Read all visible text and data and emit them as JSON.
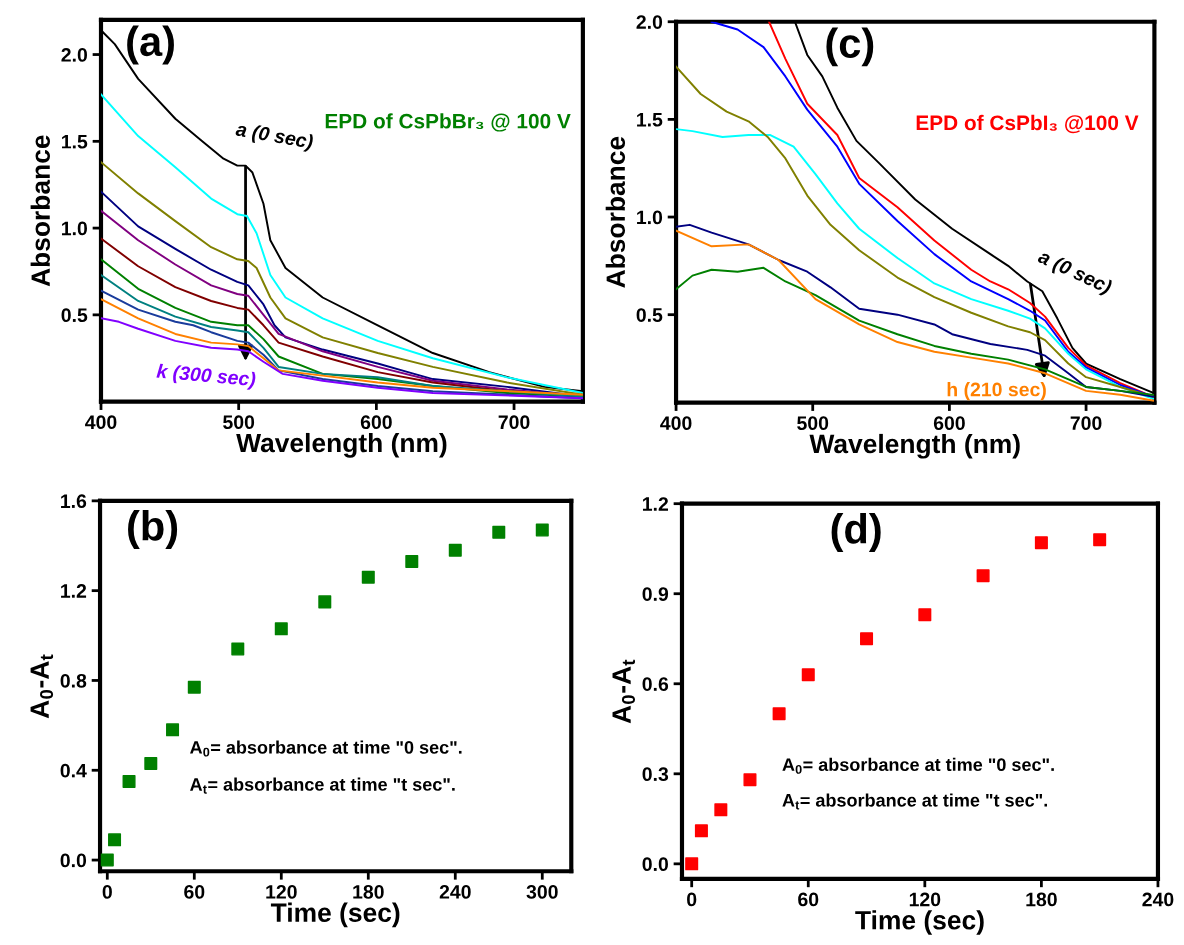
{
  "chart_data": [
    {
      "type": "line",
      "xlabel": "Wavelength (nm)",
      "ylabel": "Absorbance",
      "xlim": [
        400,
        750
      ],
      "xticks": [
        400,
        500,
        600,
        700
      ],
      "ylim": [
        0.0,
        2.2
      ],
      "yticks": [
        0.5,
        {
          "value": 1,
          "label": "1.0"
        },
        1.5,
        {
          "value": 2,
          "label": "2.0"
        }
      ],
      "annotations": [
        "(a)",
        "EPD of CsPbBr₃ @ 100 V",
        {
          "text": "a (0 sec)",
          "x": 505,
          "y": 1.37
        },
        "k (300 sec)"
      ],
      "series": [
        {
          "color": "#000000",
          "x": [
            400,
            410,
            427,
            454,
            472,
            489,
            499,
            505,
            510,
            518,
            523,
            534,
            561,
            601,
            641,
            682,
            722,
            750
          ],
          "values": [
            2.14,
            2.06,
            1.86,
            1.63,
            1.51,
            1.4,
            1.36,
            1.36,
            1.32,
            1.14,
            0.93,
            0.77,
            0.6,
            0.44,
            0.28,
            0.17,
            0.085,
            0.06
          ]
        },
        {
          "color": "#00ffff",
          "x": [
            400,
            427,
            454,
            480,
            499,
            506,
            513,
            523,
            534,
            561,
            601,
            641,
            695,
            750
          ],
          "values": [
            1.77,
            1.53,
            1.35,
            1.17,
            1.08,
            1.07,
            0.97,
            0.73,
            0.6,
            0.48,
            0.35,
            0.25,
            0.14,
            0.05
          ]
        },
        {
          "color": "#808000",
          "x": [
            400,
            427,
            454,
            480,
            499,
            507,
            513,
            523,
            534,
            561,
            601,
            641,
            695,
            750
          ],
          "values": [
            1.38,
            1.2,
            1.04,
            0.89,
            0.82,
            0.81,
            0.77,
            0.6,
            0.48,
            0.37,
            0.28,
            0.2,
            0.11,
            0.04
          ]
        },
        {
          "color": "#000080",
          "x": [
            400,
            427,
            454,
            480,
            499,
            507,
            518,
            526,
            534,
            561,
            601,
            623,
            641,
            695,
            750
          ],
          "values": [
            1.21,
            1.01,
            0.88,
            0.76,
            0.69,
            0.67,
            0.56,
            0.44,
            0.37,
            0.3,
            0.22,
            0.17,
            0.13,
            0.085,
            0.03
          ]
        },
        {
          "color": "#800080",
          "x": [
            400,
            427,
            454,
            480,
            499,
            507,
            518,
            529,
            561,
            601,
            641,
            695,
            750
          ],
          "values": [
            1.1,
            0.93,
            0.79,
            0.67,
            0.62,
            0.61,
            0.5,
            0.39,
            0.29,
            0.2,
            0.12,
            0.07,
            0.03
          ]
        },
        {
          "color": "#800000",
          "x": [
            400,
            427,
            454,
            480,
            499,
            507,
            518,
            529,
            561,
            601,
            641,
            695,
            750
          ],
          "values": [
            0.94,
            0.78,
            0.66,
            0.58,
            0.54,
            0.53,
            0.44,
            0.34,
            0.26,
            0.17,
            0.11,
            0.06,
            0.03
          ]
        },
        {
          "color": "#008000",
          "x": [
            400,
            427,
            454,
            480,
            499,
            507,
            518,
            529,
            561,
            601,
            641,
            695,
            750
          ],
          "values": [
            0.82,
            0.65,
            0.54,
            0.46,
            0.44,
            0.44,
            0.36,
            0.26,
            0.16,
            0.13,
            0.09,
            0.05,
            0.03
          ]
        },
        {
          "color": "#008080",
          "x": [
            400,
            427,
            454,
            480,
            499,
            507,
            518,
            529,
            561,
            601,
            641,
            750
          ],
          "values": [
            0.73,
            0.58,
            0.49,
            0.43,
            0.41,
            0.4,
            0.31,
            0.2,
            0.16,
            0.14,
            0.09,
            0.03
          ]
        },
        {
          "color": "#1a3c9c",
          "x": [
            400,
            427,
            454,
            467,
            480,
            499,
            507,
            518,
            529,
            561,
            601,
            641,
            750
          ],
          "values": [
            0.64,
            0.53,
            0.46,
            0.44,
            0.4,
            0.35,
            0.34,
            0.27,
            0.18,
            0.13,
            0.09,
            0.06,
            0.02
          ]
        },
        {
          "color": "#ff8000",
          "x": [
            400,
            427,
            454,
            480,
            499,
            507,
            518,
            529,
            561,
            601,
            641,
            750
          ],
          "values": [
            0.59,
            0.48,
            0.39,
            0.34,
            0.33,
            0.32,
            0.25,
            0.18,
            0.15,
            0.11,
            0.08,
            0.04
          ]
        },
        {
          "color": "#8000ff",
          "x": [
            400,
            413,
            427,
            454,
            480,
            499,
            507,
            518,
            532,
            561,
            601,
            641,
            750
          ],
          "values": [
            0.48,
            0.46,
            0.42,
            0.35,
            0.31,
            0.3,
            0.29,
            0.23,
            0.16,
            0.12,
            0.08,
            0.05,
            0.02
          ]
        }
      ]
    },
    {
      "type": "line",
      "xlabel": "Wavelength (nm)",
      "ylabel": "Absorbance",
      "xlim": [
        400,
        750
      ],
      "xticks": [
        400,
        500,
        600,
        700
      ],
      "ylim": [
        0.05,
        2.0
      ],
      "yticks": [
        0.5,
        {
          "value": 1,
          "label": "1.0"
        },
        1.5,
        {
          "value": 2,
          "label": "2.0"
        }
      ],
      "annotations": [
        "(c)",
        "EPD of CsPbI₃ @100 V",
        {
          "text": "a (0 sec)",
          "x": 659,
          "y": 0.67
        },
        "h (210 sec)"
      ],
      "series": [
        {
          "color": "#000000",
          "x": [
            487,
            496,
            507,
            518,
            532,
            548,
            575,
            602,
            630,
            643,
            657,
            668,
            679,
            690,
            700,
            725,
            749
          ],
          "values": [
            2.0,
            1.83,
            1.72,
            1.56,
            1.39,
            1.28,
            1.09,
            0.94,
            0.81,
            0.75,
            0.67,
            0.62,
            0.48,
            0.33,
            0.25,
            0.17,
            0.1
          ]
        },
        {
          "color": "#ff0000",
          "x": [
            468,
            480,
            496,
            518,
            534,
            562,
            589,
            616,
            630,
            643,
            659,
            670,
            687,
            700,
            725,
            749
          ],
          "values": [
            2.0,
            1.81,
            1.58,
            1.42,
            1.2,
            1.05,
            0.88,
            0.73,
            0.67,
            0.63,
            0.56,
            0.49,
            0.33,
            0.24,
            0.15,
            0.08
          ]
        },
        {
          "color": "#0000ff",
          "x": [
            426,
            445,
            464,
            480,
            496,
            518,
            534,
            562,
            589,
            616,
            643,
            659,
            670,
            687,
            700,
            725,
            749
          ],
          "values": [
            2.0,
            1.96,
            1.87,
            1.72,
            1.55,
            1.36,
            1.17,
            0.98,
            0.81,
            0.67,
            0.58,
            0.52,
            0.47,
            0.31,
            0.23,
            0.14,
            0.08
          ]
        },
        {
          "color": "#00ffff",
          "x": [
            400,
            412,
            434,
            453,
            469,
            486,
            502,
            518,
            534,
            562,
            589,
            616,
            643,
            659,
            670,
            687,
            700,
            725,
            749
          ],
          "values": [
            1.45,
            1.44,
            1.41,
            1.42,
            1.42,
            1.36,
            1.22,
            1.07,
            0.94,
            0.79,
            0.66,
            0.58,
            0.52,
            0.48,
            0.43,
            0.3,
            0.22,
            0.13,
            0.07
          ]
        },
        {
          "color": "#808000",
          "x": [
            400,
            418,
            437,
            453,
            467,
            480,
            496,
            513,
            534,
            562,
            589,
            616,
            643,
            659,
            670,
            687,
            700,
            725,
            749
          ],
          "values": [
            1.77,
            1.63,
            1.54,
            1.49,
            1.41,
            1.3,
            1.11,
            0.96,
            0.83,
            0.69,
            0.59,
            0.51,
            0.44,
            0.41,
            0.37,
            0.25,
            0.18,
            0.13,
            0.08
          ]
        },
        {
          "color": "#000080",
          "x": [
            400,
            410,
            426,
            453,
            475,
            496,
            513,
            534,
            562,
            589,
            602,
            630,
            657,
            670,
            687,
            700,
            725,
            749
          ],
          "values": [
            0.95,
            0.96,
            0.92,
            0.86,
            0.78,
            0.72,
            0.64,
            0.53,
            0.5,
            0.45,
            0.4,
            0.35,
            0.32,
            0.29,
            0.2,
            0.13,
            0.11,
            0.08
          ]
        },
        {
          "color": "#008000",
          "x": [
            400,
            412,
            426,
            445,
            464,
            480,
            502,
            534,
            562,
            589,
            616,
            643,
            670,
            700,
            725,
            749
          ],
          "values": [
            0.63,
            0.7,
            0.73,
            0.72,
            0.74,
            0.67,
            0.6,
            0.47,
            0.4,
            0.34,
            0.3,
            0.27,
            0.22,
            0.13,
            0.11,
            0.09
          ]
        },
        {
          "color": "#ff8000",
          "x": [
            400,
            426,
            453,
            475,
            502,
            534,
            562,
            589,
            616,
            643,
            670,
            700,
            725,
            749
          ],
          "values": [
            0.93,
            0.85,
            0.86,
            0.78,
            0.58,
            0.45,
            0.36,
            0.31,
            0.28,
            0.25,
            0.2,
            0.11,
            0.09,
            0.06
          ]
        }
      ]
    },
    {
      "type": "scatter",
      "xlabel": "Time (sec)",
      "ylabel": "A$_{0}$-A$_{t}$",
      "xlim": [
        -5,
        320
      ],
      "xticks": [
        0,
        60,
        120,
        180,
        240,
        300
      ],
      "ylim": [
        -0.05,
        1.6
      ],
      "yticks": [
        {
          "value": 0,
          "label": "0.0"
        },
        0.4,
        0.8,
        1.2,
        1.6
      ],
      "marker": "square",
      "annotations": [
        "(b)",
        "A$_{0}$= absorbance at time \"0 sec\".",
        "A$_{t}$= absorbance at time \"t sec\"."
      ],
      "series": [
        {
          "color": "#008000",
          "x": [
            0,
            5,
            15,
            30,
            45,
            60,
            90,
            120,
            150,
            180,
            210,
            240,
            270,
            300
          ],
          "values": [
            0.0,
            0.09,
            0.35,
            0.43,
            0.58,
            0.77,
            0.94,
            1.03,
            1.15,
            1.26,
            1.33,
            1.38,
            1.46,
            1.47
          ]
        }
      ]
    },
    {
      "type": "scatter",
      "xlabel": "Time (sec)",
      "ylabel": "A$_{0}$-A$_{t}$",
      "xlim": [
        -5,
        240
      ],
      "xticks": [
        0,
        60,
        120,
        180,
        240
      ],
      "ylim": [
        -0.05,
        1.2
      ],
      "yticks": [
        {
          "value": 0,
          "label": "0.0"
        },
        0.3,
        0.6,
        0.9,
        1.2
      ],
      "marker": "square",
      "annotations": [
        "(d)",
        "A$_{0}$= absorbance at time \"0 sec\".",
        "A$_{t}$= absorbance at time \"t sec\"."
      ],
      "series": [
        {
          "color": "#ff0000",
          "x": [
            0,
            5,
            15,
            30,
            45,
            60,
            90,
            120,
            150,
            180,
            210
          ],
          "values": [
            0.0,
            0.11,
            0.18,
            0.28,
            0.5,
            0.63,
            0.75,
            0.83,
            0.96,
            1.07,
            1.08
          ]
        }
      ]
    }
  ]
}
